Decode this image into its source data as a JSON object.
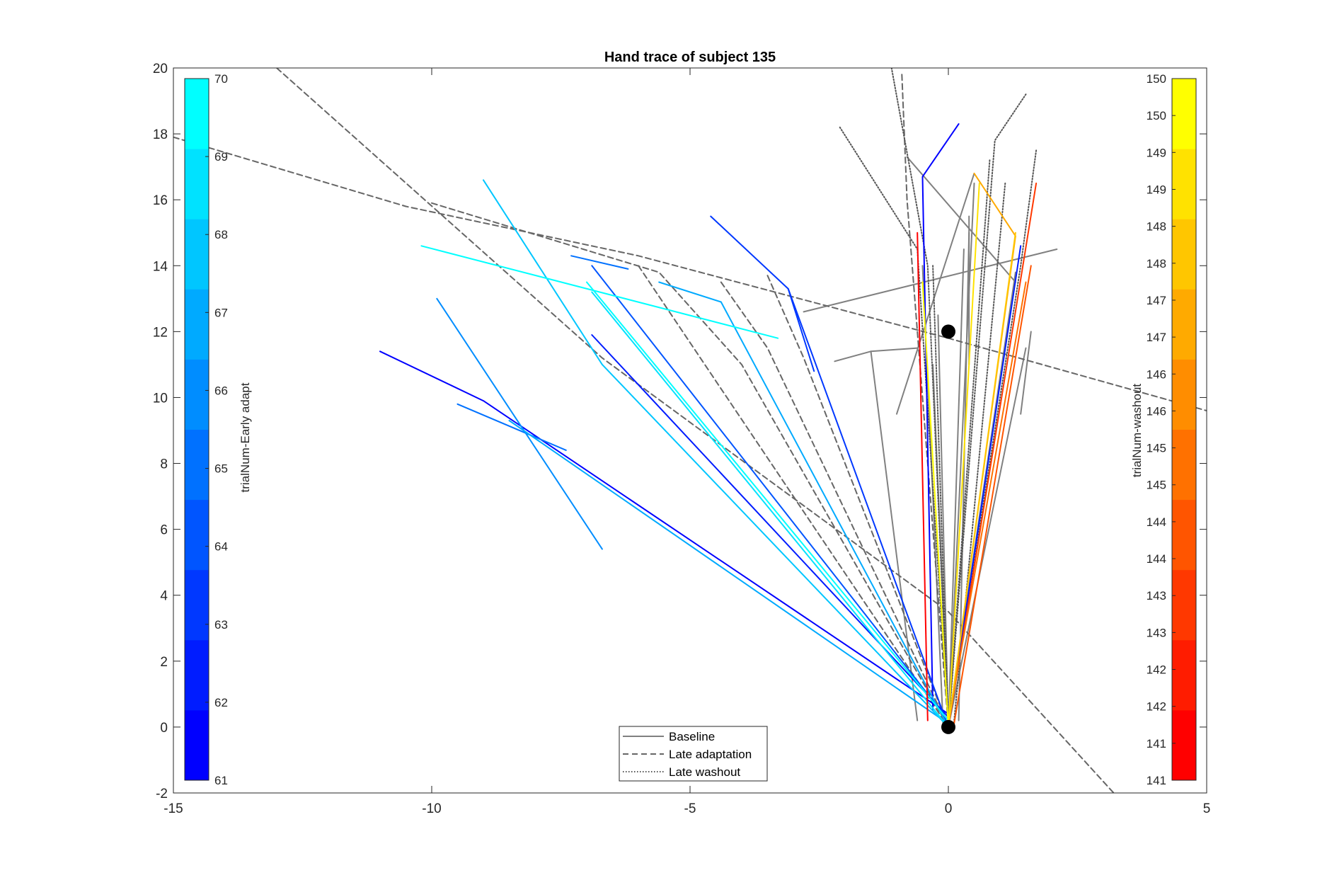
{
  "chart_data": {
    "type": "line",
    "title": "Hand trace of subject 135",
    "xlabel": "",
    "ylabel": "",
    "xlim": [
      -15,
      5
    ],
    "ylim": [
      -2,
      20
    ],
    "xticks": [
      "-15",
      "-10",
      "-5",
      "0",
      "5"
    ],
    "yticks": [
      "-2",
      "0",
      "2",
      "4",
      "6",
      "8",
      "10",
      "12",
      "14",
      "16",
      "18",
      "20"
    ],
    "grid": false,
    "legend": {
      "placement": "bottom-center",
      "entries": [
        {
          "label": "Baseline",
          "style": "solid",
          "color": "#808080"
        },
        {
          "label": "Late adaptation",
          "style": "dashed",
          "color": "#666666"
        },
        {
          "label": "Late washout",
          "style": "dotted",
          "color": "#555555"
        }
      ]
    },
    "colorbar_left": {
      "label": "trialNum-Early adapt",
      "ticks": [
        "61",
        "62",
        "63",
        "64",
        "65",
        "66",
        "67",
        "68",
        "69",
        "70"
      ],
      "range": [
        61,
        70
      ],
      "colors": [
        "#0000ff",
        "#001cff",
        "#0038ff",
        "#0055ff",
        "#0071ff",
        "#008dff",
        "#00aaff",
        "#00c6ff",
        "#00e2ff",
        "#00ffff"
      ]
    },
    "colorbar_right": {
      "label": "trialNum-washout",
      "ticks": [
        "141",
        "141",
        "142",
        "142",
        "143",
        "143",
        "144",
        "144",
        "145",
        "145",
        "146",
        "146",
        "147",
        "147",
        "148",
        "148",
        "149",
        "149",
        "150",
        "150"
      ],
      "range": [
        141,
        150
      ],
      "colors": [
        "#ff0000",
        "#ff1c00",
        "#ff3800",
        "#ff5500",
        "#ff7100",
        "#ff8d00",
        "#ffaa00",
        "#ffc600",
        "#ffe200",
        "#ffff00"
      ]
    },
    "markers": [
      {
        "name": "start",
        "x": 0,
        "y": 0
      },
      {
        "name": "target",
        "x": 0,
        "y": 12
      }
    ],
    "series": [
      {
        "group": "Baseline",
        "style": "solid",
        "color": "#808080",
        "points": [
          [
            0,
            0
          ],
          [
            -0.3,
            11
          ]
        ]
      },
      {
        "group": "Baseline",
        "style": "solid",
        "color": "#808080",
        "points": [
          [
            -0.1,
            0
          ],
          [
            -0.5,
            14
          ]
        ]
      },
      {
        "group": "Baseline",
        "style": "solid",
        "color": "#808080",
        "points": [
          [
            0,
            0
          ],
          [
            1.3,
            13.8
          ]
        ]
      },
      {
        "group": "Baseline",
        "style": "solid",
        "color": "#808080",
        "points": [
          [
            0,
            0
          ],
          [
            0.5,
            16.5
          ]
        ]
      },
      {
        "group": "Baseline",
        "style": "solid",
        "color": "#808080",
        "points": [
          [
            0,
            0
          ],
          [
            0.3,
            14.5
          ]
        ]
      },
      {
        "group": "Baseline",
        "style": "solid",
        "color": "#808080",
        "points": [
          [
            0,
            0
          ],
          [
            -0.2,
            12.5
          ]
        ]
      },
      {
        "group": "Baseline",
        "style": "solid",
        "color": "#808080",
        "points": [
          [
            0,
            0
          ],
          [
            1.5,
            11.5
          ]
        ]
      },
      {
        "group": "Baseline",
        "style": "solid",
        "color": "#808080",
        "points": [
          [
            -2.2,
            11.1
          ],
          [
            -1.5,
            11.4
          ],
          [
            -0.6,
            11.5
          ]
        ]
      },
      {
        "group": "Baseline",
        "style": "solid",
        "color": "#808080",
        "points": [
          [
            -1.5,
            11.4
          ],
          [
            -0.6,
            0.2
          ]
        ]
      },
      {
        "group": "Baseline",
        "style": "solid",
        "color": "#808080",
        "points": [
          [
            -2.8,
            12.6
          ],
          [
            2.1,
            14.5
          ]
        ]
      },
      {
        "group": "Baseline",
        "style": "solid",
        "color": "#808080",
        "points": [
          [
            -1,
            9.5
          ],
          [
            0.5,
            16.8
          ]
        ]
      },
      {
        "group": "Baseline",
        "style": "solid",
        "color": "#808080",
        "points": [
          [
            -0.8,
            17.3
          ],
          [
            1.3,
            13.5
          ]
        ]
      },
      {
        "group": "Baseline",
        "style": "solid",
        "color": "#808080",
        "points": [
          [
            0.2,
            0.2
          ],
          [
            0.4,
            15
          ]
        ]
      },
      {
        "group": "Baseline",
        "style": "solid",
        "color": "#808080",
        "points": [
          [
            1.4,
            9.5
          ],
          [
            1.6,
            12
          ]
        ]
      },
      {
        "group": "Baseline",
        "style": "solid",
        "color": "#808080",
        "points": [
          [
            0.4,
            11
          ],
          [
            0.4,
            15.5
          ]
        ]
      },
      {
        "group": "Late adaptation",
        "style": "dashed",
        "color": "#666666",
        "points": [
          [
            -15,
            17.9
          ],
          [
            -10.5,
            15.8
          ],
          [
            -6,
            14.3
          ],
          [
            0,
            11.8
          ],
          [
            5,
            9.6
          ]
        ]
      },
      {
        "group": "Late adaptation",
        "style": "dashed",
        "color": "#666666",
        "points": [
          [
            -13,
            20
          ],
          [
            -6.7,
            11.2
          ],
          [
            0,
            3.5
          ],
          [
            3.2,
            -2
          ]
        ]
      },
      {
        "group": "Late adaptation",
        "style": "dashed",
        "color": "#666666",
        "points": [
          [
            -10,
            15.9
          ],
          [
            -5.6,
            13.8
          ],
          [
            -4,
            11
          ],
          [
            0,
            0
          ]
        ]
      },
      {
        "group": "Late adaptation",
        "style": "dashed",
        "color": "#666666",
        "points": [
          [
            -4.4,
            13.5
          ],
          [
            -3.5,
            11.5
          ],
          [
            0,
            0
          ]
        ]
      },
      {
        "group": "Late adaptation",
        "style": "dashed",
        "color": "#666666",
        "points": [
          [
            -3.5,
            13.7
          ],
          [
            -2.8,
            11.2
          ],
          [
            0,
            0
          ]
        ]
      },
      {
        "group": "Late adaptation",
        "style": "dashed",
        "color": "#666666",
        "points": [
          [
            -0.9,
            19.8
          ],
          [
            -0.8,
            16
          ],
          [
            0,
            0
          ]
        ]
      },
      {
        "group": "Late adaptation",
        "style": "dashed",
        "color": "#666666",
        "points": [
          [
            -6,
            14
          ],
          [
            0,
            0
          ]
        ]
      },
      {
        "group": "Late washout",
        "style": "dotted",
        "color": "#555555",
        "points": [
          [
            -1.1,
            20
          ],
          [
            -0.4,
            14
          ],
          [
            0,
            0
          ]
        ]
      },
      {
        "group": "Late washout",
        "style": "dotted",
        "color": "#555555",
        "points": [
          [
            -2.1,
            18.2
          ],
          [
            -0.6,
            14.5
          ],
          [
            0,
            0
          ]
        ]
      },
      {
        "group": "Late washout",
        "style": "dotted",
        "color": "#555555",
        "points": [
          [
            1.5,
            19.2
          ],
          [
            0.9,
            17.8
          ],
          [
            0,
            0
          ]
        ]
      },
      {
        "group": "Late washout",
        "style": "dotted",
        "color": "#555555",
        "points": [
          [
            1.7,
            17.5
          ],
          [
            1.4,
            14
          ],
          [
            0,
            0
          ]
        ]
      },
      {
        "group": "Late washout",
        "style": "dotted",
        "color": "#555555",
        "points": [
          [
            0.8,
            17.2
          ],
          [
            0,
            0
          ]
        ]
      },
      {
        "group": "Late washout",
        "style": "dotted",
        "color": "#555555",
        "points": [
          [
            -0.3,
            14
          ],
          [
            0,
            0
          ]
        ]
      },
      {
        "group": "Late washout",
        "style": "dotted",
        "color": "#555555",
        "points": [
          [
            1.1,
            16.5
          ],
          [
            0.1,
            0
          ]
        ]
      },
      {
        "group": "Early adapt",
        "trial": 61,
        "style": "solid",
        "color": "#0000ff",
        "points": [
          [
            -11,
            11.4
          ],
          [
            -9,
            9.9
          ],
          [
            0,
            0.4
          ]
        ]
      },
      {
        "group": "Early adapt",
        "trial": 61,
        "style": "solid",
        "color": "#0000ff",
        "points": [
          [
            0.2,
            18.3
          ],
          [
            -0.5,
            16.7
          ],
          [
            -0.3,
            0.5
          ]
        ]
      },
      {
        "group": "Early adapt",
        "trial": 62,
        "style": "solid",
        "color": "#001cff",
        "points": [
          [
            1.4,
            14.6
          ],
          [
            0,
            0
          ]
        ]
      },
      {
        "group": "Early adapt",
        "trial": 62,
        "style": "solid",
        "color": "#001cff",
        "points": [
          [
            -6.9,
            11.9
          ],
          [
            0,
            0.3
          ]
        ]
      },
      {
        "group": "Early adapt",
        "trial": 63,
        "style": "solid",
        "color": "#0038ff",
        "points": [
          [
            -4.6,
            15.5
          ],
          [
            -3.1,
            13.3
          ],
          [
            -2.6,
            10.8
          ]
        ]
      },
      {
        "group": "Early adapt",
        "trial": 63,
        "style": "solid",
        "color": "#0038ff",
        "points": [
          [
            -3.1,
            13.3
          ],
          [
            0,
            0
          ]
        ]
      },
      {
        "group": "Early adapt",
        "trial": 64,
        "style": "solid",
        "color": "#0055ff",
        "points": [
          [
            -6.9,
            14
          ],
          [
            0,
            0.2
          ]
        ]
      },
      {
        "group": "Early adapt",
        "trial": 65,
        "style": "solid",
        "color": "#0071ff",
        "points": [
          [
            -7.3,
            14.3
          ],
          [
            -6.2,
            13.9
          ]
        ]
      },
      {
        "group": "Early adapt",
        "trial": 65,
        "style": "solid",
        "color": "#0071ff",
        "points": [
          [
            -9.5,
            9.8
          ],
          [
            -7.4,
            8.4
          ]
        ]
      },
      {
        "group": "Early adapt",
        "trial": 66,
        "style": "solid",
        "color": "#008dff",
        "points": [
          [
            -9.9,
            13
          ],
          [
            -6.7,
            5.4
          ]
        ]
      },
      {
        "group": "Early adapt",
        "trial": 67,
        "style": "solid",
        "color": "#00aaff",
        "points": [
          [
            -8.5,
            9.3
          ],
          [
            0,
            0.1
          ]
        ]
      },
      {
        "group": "Early adapt",
        "trial": 67,
        "style": "solid",
        "color": "#00aaff",
        "points": [
          [
            -5.6,
            13.5
          ],
          [
            -4.4,
            12.9
          ],
          [
            0,
            0
          ]
        ]
      },
      {
        "group": "Early adapt",
        "trial": 68,
        "style": "solid",
        "color": "#00c6ff",
        "points": [
          [
            -9,
            16.6
          ],
          [
            -6.7,
            11
          ],
          [
            0,
            0
          ]
        ]
      },
      {
        "group": "Early adapt",
        "trial": 69,
        "style": "solid",
        "color": "#00e2ff",
        "points": [
          [
            -6.9,
            13.2
          ],
          [
            0,
            0
          ]
        ]
      },
      {
        "group": "Early adapt",
        "trial": 70,
        "style": "solid",
        "color": "#00ffff",
        "points": [
          [
            -10.2,
            14.6
          ],
          [
            -3.3,
            11.8
          ]
        ]
      },
      {
        "group": "Early adapt",
        "trial": 70,
        "style": "solid",
        "color": "#00ffff",
        "points": [
          [
            -7,
            13.5
          ],
          [
            0,
            0.2
          ]
        ]
      },
      {
        "group": "washout",
        "trial": 141,
        "style": "solid",
        "color": "#ff0000",
        "points": [
          [
            -0.6,
            15
          ],
          [
            -0.4,
            0.2
          ]
        ]
      },
      {
        "group": "washout",
        "trial": 143,
        "style": "solid",
        "color": "#ff3800",
        "points": [
          [
            1.7,
            16.5
          ],
          [
            0,
            0
          ]
        ]
      },
      {
        "group": "washout",
        "trial": 144,
        "style": "solid",
        "color": "#ff5500",
        "points": [
          [
            1.6,
            14
          ],
          [
            0.1,
            0
          ]
        ]
      },
      {
        "group": "washout",
        "trial": 145,
        "style": "solid",
        "color": "#ff7100",
        "points": [
          [
            1.5,
            13.5
          ],
          [
            0,
            0.1
          ]
        ]
      },
      {
        "group": "washout",
        "trial": 147,
        "style": "solid",
        "color": "#ffaa00",
        "points": [
          [
            0.5,
            16.8
          ],
          [
            1.3,
            14.9
          ],
          [
            0,
            0
          ]
        ]
      },
      {
        "group": "washout",
        "trial": 148,
        "style": "solid",
        "color": "#ffc600",
        "points": [
          [
            1.3,
            15
          ],
          [
            0,
            0
          ]
        ]
      },
      {
        "group": "washout",
        "trial": 149,
        "style": "solid",
        "color": "#ffe200",
        "points": [
          [
            0.6,
            16.5
          ],
          [
            0,
            0
          ]
        ]
      },
      {
        "group": "washout",
        "trial": 150,
        "style": "solid",
        "color": "#ffff00",
        "points": [
          [
            -0.5,
            13.5
          ],
          [
            0,
            0
          ]
        ]
      }
    ]
  }
}
